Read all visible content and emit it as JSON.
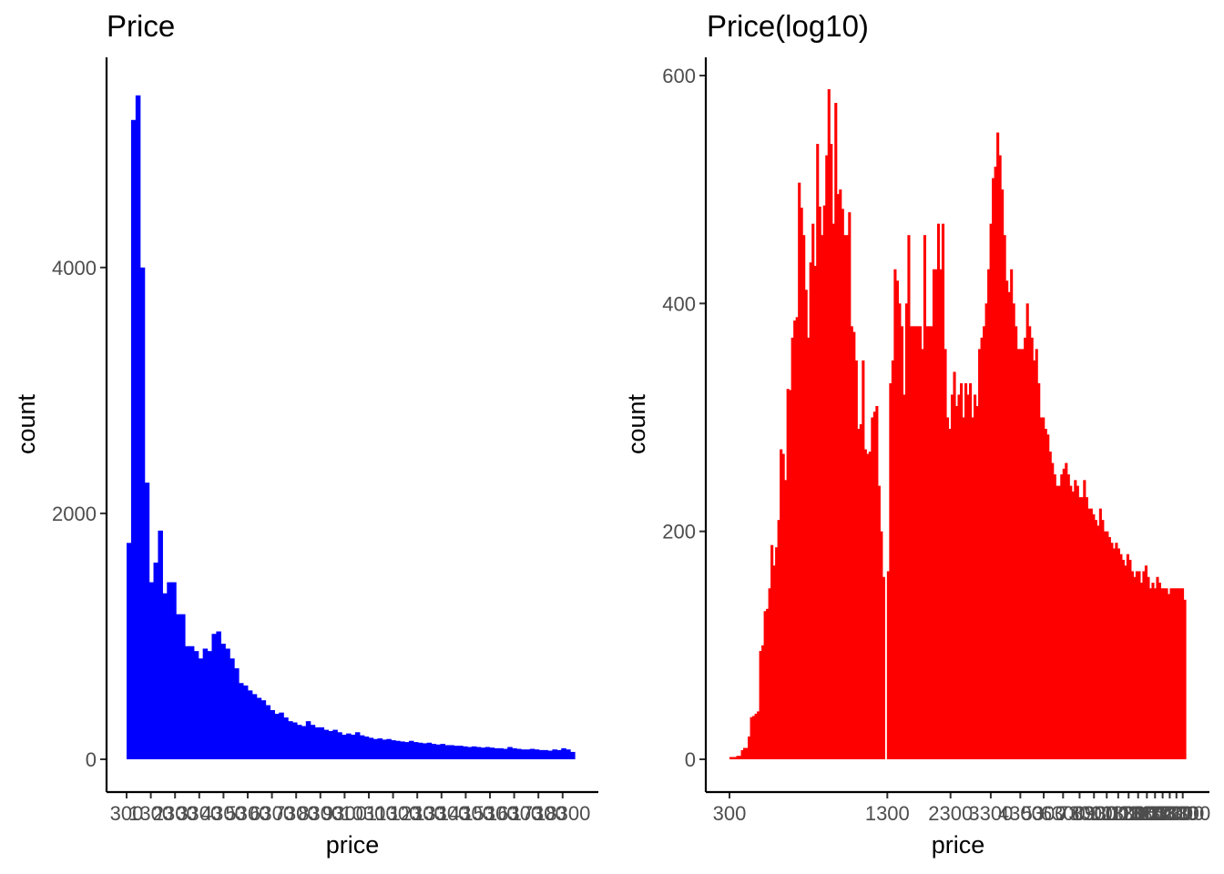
{
  "chart_data": [
    {
      "type": "bar",
      "title": "Price",
      "xlabel": "price",
      "ylabel": "count",
      "color": "#0000ff",
      "xlim": [
        326,
        18823
      ],
      "ylim": [
        0,
        5500
      ],
      "x_ticks": [
        326,
        1326,
        2326,
        3326,
        4326,
        5326,
        6326,
        7326,
        8326,
        9326,
        10326,
        11326,
        12326,
        13326,
        14326,
        15326,
        16326,
        17326,
        18326
      ],
      "x_tick_labels": [
        "300",
        "1300",
        "2300",
        "3300",
        "4300",
        "5300",
        "6300",
        "7300",
        "8300",
        "9300",
        "10300",
        "11300",
        "12300",
        "13300",
        "14300",
        "15300",
        "16300",
        "17300",
        "18300"
      ],
      "y_ticks": [
        0,
        2000,
        4000
      ],
      "y_tick_labels": [
        "0",
        "2000",
        "4000"
      ],
      "bin_start": 326,
      "bin_width": 200,
      "values": [
        1760,
        5200,
        5400,
        4000,
        2250,
        1440,
        1600,
        1860,
        1350,
        1440,
        1440,
        1180,
        1180,
        920,
        920,
        880,
        820,
        900,
        880,
        1020,
        1040,
        940,
        900,
        820,
        740,
        620,
        600,
        560,
        530,
        500,
        480,
        440,
        400,
        370,
        380,
        340,
        310,
        300,
        280,
        270,
        310,
        280,
        260,
        260,
        240,
        230,
        240,
        220,
        200,
        210,
        200,
        220,
        195,
        185,
        175,
        165,
        170,
        160,
        165,
        155,
        150,
        145,
        140,
        150,
        140,
        135,
        130,
        135,
        125,
        120,
        125,
        115,
        115,
        110,
        110,
        105,
        100,
        105,
        100,
        95,
        100,
        95,
        90,
        90,
        85,
        100,
        90,
        85,
        80,
        80,
        85,
        80,
        75,
        75,
        70,
        80,
        75,
        90,
        80,
        60
      ]
    },
    {
      "type": "bar",
      "title": "Price(log10)",
      "xlabel": "price",
      "ylabel": "count",
      "color": "#ff0000",
      "xscale": "log10",
      "xlim": [
        326,
        18823
      ],
      "ylim": [
        0,
        600
      ],
      "x_ticks": [
        326,
        1326,
        2326,
        3326,
        4326,
        5326,
        6326,
        7326,
        8326,
        9326,
        10326,
        11326,
        12326,
        13326,
        14326,
        15326,
        16326,
        17326,
        18326
      ],
      "x_tick_labels": [
        "300",
        "1300",
        "2300",
        "3300",
        "4300",
        "5300",
        "6300",
        "7300",
        "8300",
        "9300",
        "10300",
        "11300",
        "12300",
        "13300",
        "14300",
        "15300",
        "16300",
        "17300",
        "18300"
      ],
      "y_ticks": [
        0,
        200,
        400,
        600
      ],
      "y_tick_labels": [
        "0",
        "200",
        "400",
        "600"
      ],
      "bins": 200,
      "values": [
        2,
        2,
        2,
        3,
        3,
        8,
        10,
        10,
        20,
        37,
        38,
        40,
        42,
        95,
        100,
        130,
        132,
        150,
        188,
        170,
        186,
        210,
        272,
        268,
        245,
        325,
        324,
        370,
        385,
        388,
        506,
        484,
        460,
        412,
        370,
        436,
        470,
        433,
        540,
        485,
        460,
        486,
        530,
        588,
        540,
        470,
        576,
        496,
        500,
        483,
        460,
        460,
        480,
        380,
        375,
        350,
        290,
        294,
        350,
        272,
        268,
        270,
        300,
        305,
        310,
        240,
        200,
        160,
        0,
        165,
        330,
        350,
        430,
        420,
        400,
        380,
        320,
        400,
        460,
        380,
        380,
        380,
        380,
        380,
        360,
        460,
        380,
        380,
        380,
        430,
        430,
        470,
        430,
        470,
        360,
        300,
        290,
        320,
        340,
        310,
        320,
        330,
        300,
        330,
        320,
        330,
        300,
        320,
        310,
        360,
        370,
        380,
        400,
        430,
        470,
        510,
        520,
        550,
        530,
        500,
        460,
        420,
        410,
        430,
        400,
        380,
        360,
        360,
        360,
        370,
        400,
        380,
        370,
        350,
        360,
        330,
        300,
        300,
        290,
        285,
        270,
        260,
        250,
        240,
        240,
        250,
        255,
        260,
        250,
        240,
        235,
        245,
        240,
        230,
        230,
        245,
        230,
        220,
        220,
        215,
        210,
        205,
        220,
        210,
        200,
        200,
        195,
        190,
        185,
        190,
        185,
        180,
        175,
        170,
        180,
        175,
        165,
        160,
        165,
        165,
        155,
        165,
        170,
        160,
        150,
        155,
        150,
        160,
        155,
        150,
        150,
        150,
        145,
        150,
        150,
        150,
        150,
        150,
        150,
        140
      ]
    }
  ]
}
